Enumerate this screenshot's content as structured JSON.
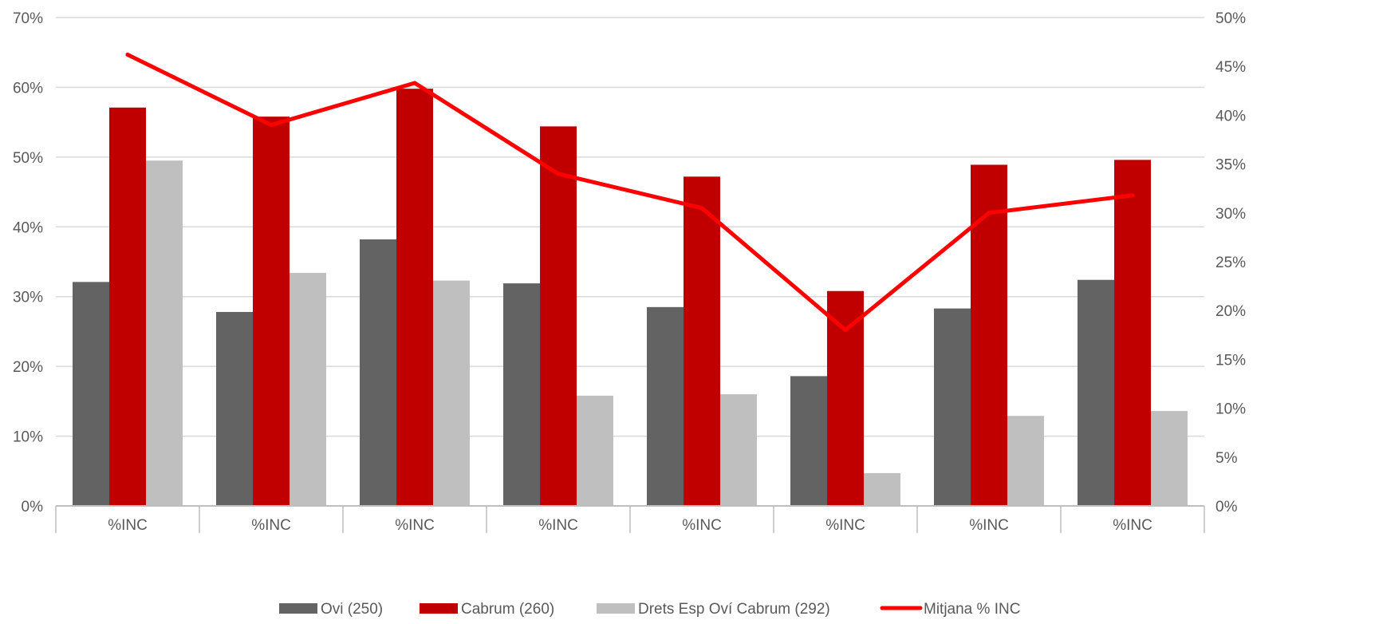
{
  "chart_data": {
    "type": "bar",
    "categories": [
      "%INC",
      "%INC",
      "%INC",
      "%INC",
      "%INC",
      "%INC",
      "%INC",
      "%INC"
    ],
    "series": [
      {
        "name": "Ovi (250)",
        "type": "bar",
        "axis": "left",
        "color": "#636363",
        "values": [
          32.1,
          27.8,
          38.2,
          31.9,
          28.5,
          18.6,
          28.3,
          32.4
        ]
      },
      {
        "name": "Cabrum (260)",
        "type": "bar",
        "axis": "left",
        "color": "#c00000",
        "values": [
          57.1,
          55.8,
          59.8,
          54.4,
          47.2,
          30.8,
          48.9,
          49.6
        ]
      },
      {
        "name": "Drets Esp Oví Cabrum (292)",
        "type": "bar",
        "axis": "left",
        "color": "#bfbfbf",
        "values": [
          49.5,
          33.4,
          32.3,
          15.8,
          16.0,
          4.7,
          12.9,
          13.6
        ]
      },
      {
        "name": "Mitjana % INC",
        "type": "line",
        "axis": "right",
        "color": "#ff0000",
        "values": [
          46.2,
          39.0,
          43.3,
          34.0,
          30.5,
          18.0,
          30.0,
          31.8
        ]
      }
    ],
    "yleft": {
      "min": 0,
      "max": 70,
      "step": 10,
      "tick_labels": [
        "0%",
        "10%",
        "20%",
        "30%",
        "40%",
        "50%",
        "60%",
        "70%"
      ]
    },
    "yright": {
      "min": 0,
      "max": 50,
      "step": 5,
      "tick_labels": [
        "0%",
        "5%",
        "10%",
        "15%",
        "20%",
        "25%",
        "30%",
        "35%",
        "40%",
        "45%",
        "50%"
      ]
    },
    "grid": true,
    "legend_position": "bottom",
    "colors": {
      "grid": "#d9d9d9",
      "axis": "#bfbfbf",
      "text": "#595959"
    }
  }
}
